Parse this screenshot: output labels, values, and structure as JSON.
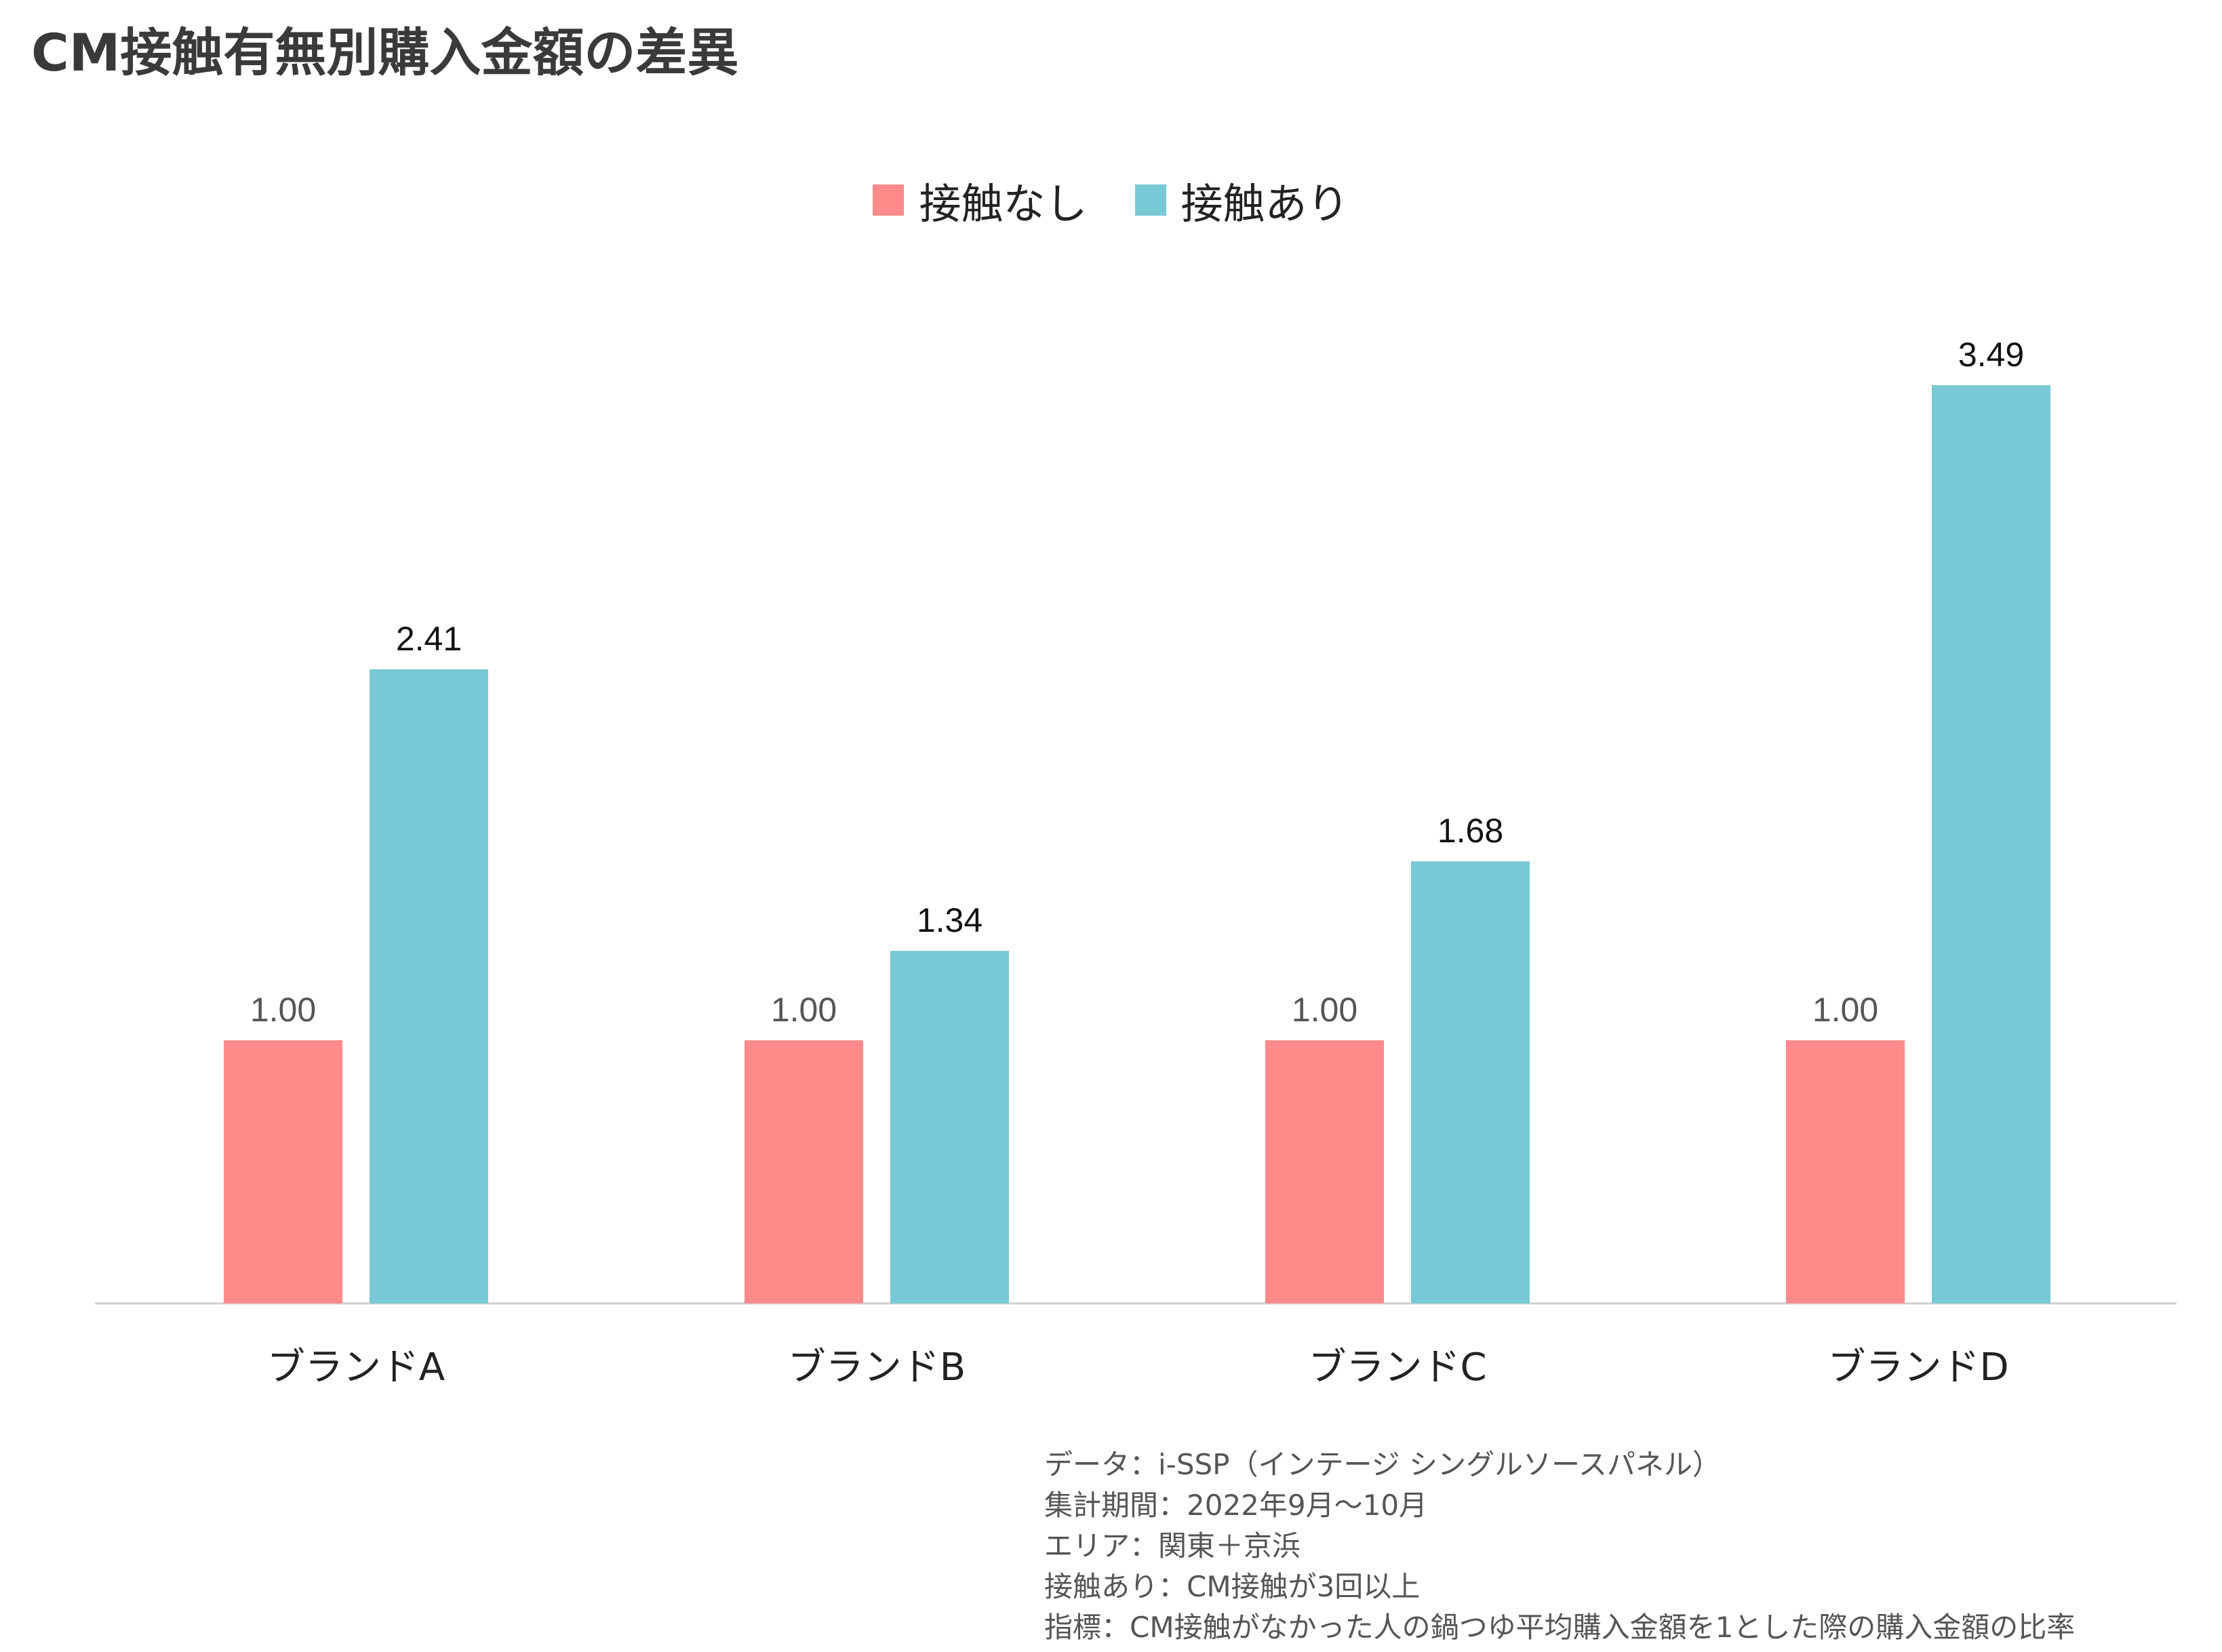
{
  "title": "CM接触有無別購入金額の差異",
  "legend": [
    {
      "label": "接触なし",
      "color": "#FF8A8A"
    },
    {
      "label": "接触あり",
      "color": "#79C8D6"
    }
  ],
  "chart_data": {
    "type": "bar",
    "categories": [
      "ブランドA",
      "ブランドB",
      "ブランドC",
      "ブランドD"
    ],
    "series": [
      {
        "name": "接触なし",
        "color": "#FF8A8A",
        "values": [
          1.0,
          1.0,
          1.0,
          1.0
        ],
        "labels": [
          "1.00",
          "1.00",
          "1.00",
          "1.00"
        ]
      },
      {
        "name": "接触あり",
        "color": "#79C8D6",
        "values": [
          2.41,
          1.34,
          1.68,
          3.49
        ],
        "labels": [
          "2.41",
          "1.34",
          "1.68",
          "3.49"
        ]
      }
    ],
    "ylim": [
      0,
      3.6
    ],
    "grid": false,
    "legend_position": "top-center"
  },
  "notes": [
    "データ：i-SSP（インテージ シングルソースパネル）",
    "集計期間：2022年9月～10月",
    "エリア：関東＋京浜",
    "接触あり：CM接触が3回以上",
    "指標：CM接触がなかった人の鍋つゆ平均購入金額を1とした際の購入金額の比率"
  ]
}
